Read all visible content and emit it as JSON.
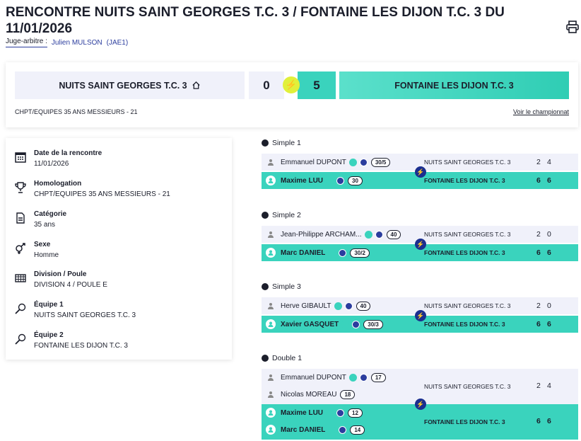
{
  "header": {
    "title": "RENCONTRE NUITS SAINT GEORGES T.C. 3 / FONTAINE LES DIJON T.C. 3 DU 11/01/2026",
    "juge_label": "Juge-arbitre :",
    "juge_name": "Julien MULSON",
    "juge_level": "(JAE1)"
  },
  "score": {
    "home_team": "NUITS SAINT GEORGES T.C. 3",
    "home_score": "0",
    "away_score": "5",
    "away_team": "FONTAINE LES DIJON T.C. 3",
    "championship": "CHPT/EQUIPES 35 ANS MESSIEURS - 21",
    "link": "Voir le championnat"
  },
  "info": [
    {
      "icon": "calendar-icon",
      "title": "Date de la rencontre",
      "value": "11/01/2026"
    },
    {
      "icon": "trophy-icon",
      "title": "Homologation",
      "value": "CHPT/EQUIPES 35 ANS MESSIEURS - 21"
    },
    {
      "icon": "document-icon",
      "title": "Catégorie",
      "value": "35 ans"
    },
    {
      "icon": "gender-icon",
      "title": "Sexe",
      "value": "Homme"
    },
    {
      "icon": "table-icon",
      "title": "Division / Poule",
      "value": "DIVISION 4 / POULE E"
    },
    {
      "icon": "racket-icon",
      "title": "Équipe 1",
      "value": "NUITS SAINT GEORGES T.C. 3"
    },
    {
      "icon": "racket-icon",
      "title": "Équipe 2",
      "value": "FONTAINE LES DIJON T.C. 3"
    }
  ],
  "matches": [
    {
      "label": "Simple 1",
      "loser": {
        "players": [
          {
            "name": "Emmanuel DUPONT",
            "rank": "30/5"
          }
        ],
        "club": "NUITS SAINT GEORGES T.C. 3",
        "s1": "2",
        "s2": "4"
      },
      "winner": {
        "players": [
          {
            "name": "Maxime LUU",
            "rank": "30"
          }
        ],
        "club": "FONTAINE LES DIJON T.C. 3",
        "s1": "6",
        "s2": "6"
      }
    },
    {
      "label": "Simple 2",
      "loser": {
        "players": [
          {
            "name": "Jean-Philippe ARCHAM...",
            "rank": "40"
          }
        ],
        "club": "NUITS SAINT GEORGES T.C. 3",
        "s1": "2",
        "s2": "0"
      },
      "winner": {
        "players": [
          {
            "name": "Marc DANIEL",
            "rank": "30/2"
          }
        ],
        "club": "FONTAINE LES DIJON T.C. 3",
        "s1": "6",
        "s2": "6"
      }
    },
    {
      "label": "Simple 3",
      "loser": {
        "players": [
          {
            "name": "Herve GIBAULT",
            "rank": "40"
          }
        ],
        "club": "NUITS SAINT GEORGES T.C. 3",
        "s1": "2",
        "s2": "0"
      },
      "winner": {
        "players": [
          {
            "name": "Xavier GASQUET",
            "rank": "30/3"
          }
        ],
        "club": "FONTAINE LES DIJON T.C. 3",
        "s1": "6",
        "s2": "6"
      }
    },
    {
      "label": "Double 1",
      "loser": {
        "players": [
          {
            "name": "Emmanuel DUPONT",
            "rank": "17"
          },
          {
            "name": "Nicolas MOREAU",
            "rank": "18"
          }
        ],
        "club": "NUITS SAINT GEORGES T.C. 3",
        "s1": "2",
        "s2": "4"
      },
      "winner": {
        "players": [
          {
            "name": "Maxime LUU",
            "rank": "12"
          },
          {
            "name": "Marc DANIEL",
            "rank": "14"
          }
        ],
        "club": "FONTAINE LES DIJON T.C. 3",
        "s1": "6",
        "s2": "6"
      }
    }
  ],
  "colors": {
    "accent": "#3ad3bd",
    "navy": "#2b3d9e",
    "bolt": "#e1f03a"
  }
}
